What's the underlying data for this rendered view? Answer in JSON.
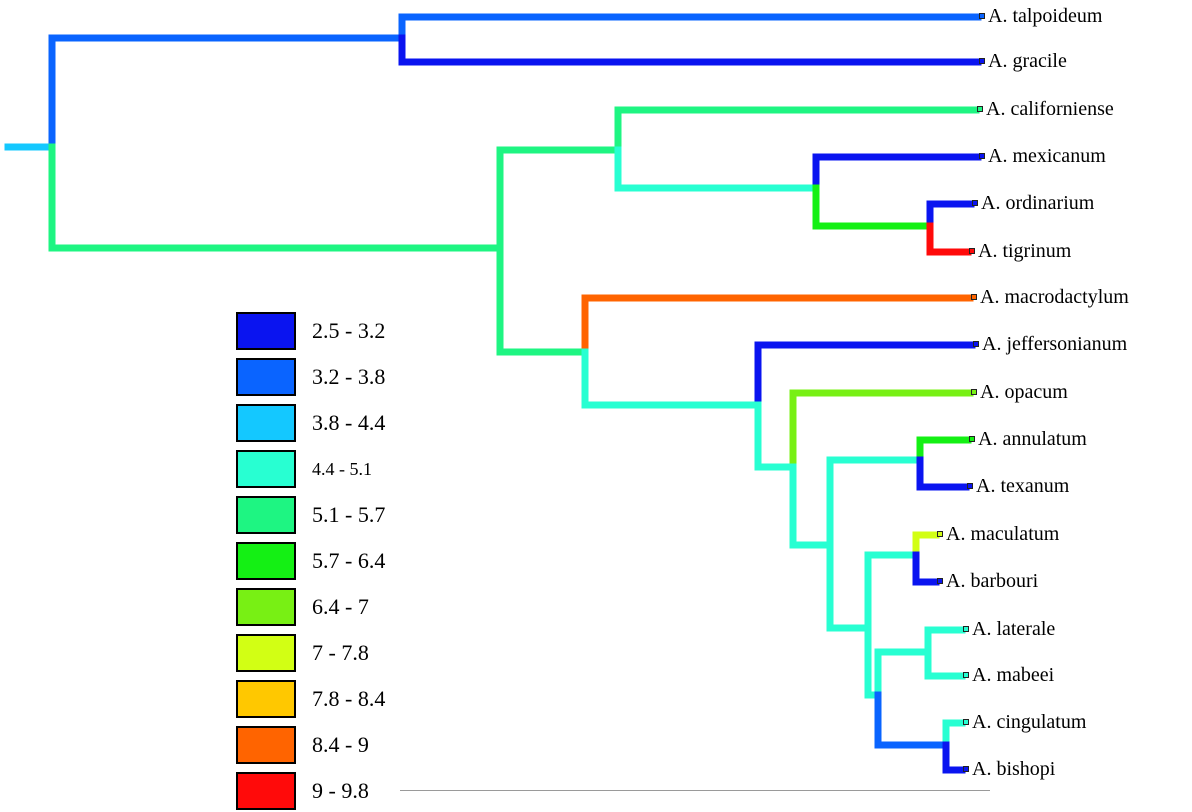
{
  "legend": [
    {
      "label": "2.5 - 3.2",
      "color": "#0a14f0"
    },
    {
      "label": "3.2 - 3.8",
      "color": "#0a64ff"
    },
    {
      "label": "3.8 - 4.4",
      "color": "#14c8ff"
    },
    {
      "label": "4.4 - 5.1",
      "color": "#28ffd2",
      "small": true
    },
    {
      "label": "5.1 - 5.7",
      "color": "#1ef582"
    },
    {
      "label": "5.7 - 6.4",
      "color": "#14f014"
    },
    {
      "label": "6.4 - 7",
      "color": "#78f014"
    },
    {
      "label": "7 - 7.8",
      "color": "#d2ff14"
    },
    {
      "label": "7.8 - 8.4",
      "color": "#ffc800"
    },
    {
      "label": "8.4 - 9",
      "color": "#ff6400"
    },
    {
      "label": "9 - 9.8",
      "color": "#ff0a0a"
    }
  ],
  "tips": [
    {
      "name": "A. talpoideum",
      "color": "#0a64ff"
    },
    {
      "name": "A. gracile",
      "color": "#0a14f0"
    },
    {
      "name": "A. californiense",
      "color": "#1ef582"
    },
    {
      "name": "A. mexicanum",
      "color": "#0a14f0"
    },
    {
      "name": "A. ordinarium",
      "color": "#0a14f0"
    },
    {
      "name": "A. tigrinum",
      "color": "#ff0a0a"
    },
    {
      "name": "A. macrodactylum",
      "color": "#ff6400"
    },
    {
      "name": "A. jeffersonianum",
      "color": "#0a14f0"
    },
    {
      "name": "A. opacum",
      "color": "#78f014"
    },
    {
      "name": "A. annulatum",
      "color": "#14f014"
    },
    {
      "name": "A. texanum",
      "color": "#0a14f0"
    },
    {
      "name": "A. maculatum",
      "color": "#d2ff14"
    },
    {
      "name": "A. barbouri",
      "color": "#0a14f0"
    },
    {
      "name": "A. laterale",
      "color": "#28ffd2"
    },
    {
      "name": "A. mabeei",
      "color": "#28ffd2"
    },
    {
      "name": "A. cingulatum",
      "color": "#28ffd2"
    },
    {
      "name": "A. bishopi",
      "color": "#0a14f0"
    }
  ]
}
